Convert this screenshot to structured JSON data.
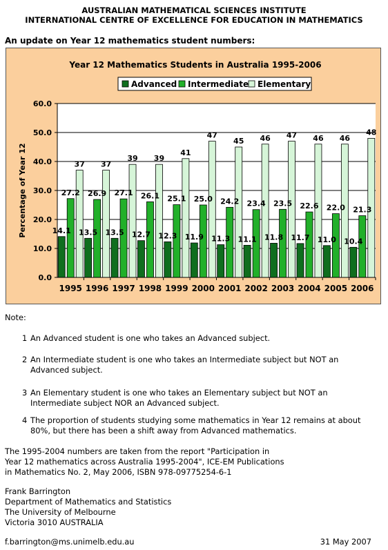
{
  "header": {
    "line1": "AUSTRALIAN MATHEMATICAL SCIENCES INSTITUTE",
    "line2": "INTERNATIONAL CENTRE OF EXCELLENCE FOR EDUCATION IN MATHEMATICS"
  },
  "subtitle": "An update on Year 12 mathematics student numbers:",
  "chart_data": {
    "type": "bar",
    "title": "Year 12 Mathematics Students in Australia 1995-2006",
    "xlabel": "",
    "ylabel": "Percentage of Year 12",
    "ylim": [
      0,
      60
    ],
    "yticks": [
      "0.0",
      "10.0",
      "20.0",
      "30.0",
      "40.0",
      "50.0",
      "60.0"
    ],
    "grid": true,
    "legend_position": "top",
    "categories": [
      "1995",
      "1996",
      "1997",
      "1998",
      "1999",
      "2000",
      "2001",
      "2002",
      "2003",
      "2004",
      "2005",
      "2006"
    ],
    "series": [
      {
        "name": "Advanced",
        "color": "#0f6e1e",
        "values": [
          14.1,
          13.5,
          13.5,
          12.7,
          12.3,
          11.9,
          11.3,
          11.1,
          11.8,
          11.7,
          11.0,
          10.4
        ],
        "labels": [
          "14.1",
          "13.5",
          "13.5",
          "12.7",
          "12.3",
          "11.9",
          "11.3",
          "11.1",
          "11.8",
          "11.7",
          "11.0",
          "10.4"
        ]
      },
      {
        "name": "Intermediate",
        "color": "#22b02a",
        "values": [
          27.2,
          26.9,
          27.1,
          26.1,
          25.1,
          25.0,
          24.2,
          23.4,
          23.5,
          22.6,
          22.0,
          21.3
        ],
        "labels": [
          "27.2",
          "26.9",
          "27.1",
          "26.1",
          "25.1",
          "25.0",
          "24.2",
          "23.4",
          "23.5",
          "22.6",
          "22.0",
          "21.3"
        ]
      },
      {
        "name": "Elementary",
        "color": "#d6f5d8",
        "values": [
          37,
          37,
          39,
          39,
          41,
          47,
          45,
          46,
          47,
          46,
          46,
          48
        ],
        "labels": [
          "37",
          "37",
          "39",
          "39",
          "41",
          "47",
          "45",
          "46",
          "47",
          "46",
          "46",
          "48"
        ]
      }
    ]
  },
  "notes": {
    "label": "Note:",
    "items": [
      {
        "num": "1",
        "text": "An Advanced student is one who takes an Advanced subject."
      },
      {
        "num": "2",
        "text": "An Intermediate student is one who takes an Intermediate subject but NOT an Advanced subject."
      },
      {
        "num": "3",
        "text": "An Elementary student is one who takes an Elementary subject but NOT an Intermediate subject NOR an Advanced subject."
      },
      {
        "num": "4",
        "text": "The proportion of students studying some mathematics in Year 12 remains at about 80%, but there has been a shift away from Advanced mathematics."
      }
    ]
  },
  "source": "The 1995-2004 numbers are taken from the report \"Participation in\nYear 12 mathematics across Australia 1995-2004\", ICE-EM Publications\nin Mathematics No. 2, May 2006, ISBN 978-09775254-6-1",
  "author": "Frank Barrington\nDepartment of Mathematics and Statistics\nThe University of Melbourne\nVictoria 3010 AUSTRALIA",
  "footer": {
    "email": "f.barrington@ms.unimelb.edu.au",
    "date": "31 May 2007"
  }
}
